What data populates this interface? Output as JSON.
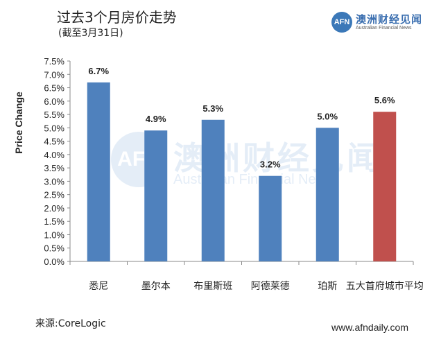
{
  "header": {
    "title": "过去3个月房价走势",
    "subtitle": "(截至3月31日)"
  },
  "logo": {
    "mark": "AFN",
    "name_cn": "澳洲财经见闻",
    "name_en": "Australian Financial News"
  },
  "footer": {
    "source": "来源:CoreLogic",
    "website": "www.afndaily.com"
  },
  "colors": {
    "bar_default": "#4f81bd",
    "bar_highlight": "#c0504d",
    "axis": "#888888",
    "text": "#222222"
  },
  "chart_data": {
    "type": "bar",
    "title": "过去3个月房价走势",
    "subtitle": "(截至3月31日)",
    "xlabel": "",
    "ylabel": "Price Change",
    "categories": [
      "悉尼",
      "墨尔本",
      "布里斯班",
      "阿德莱德",
      "珀斯",
      "五大首府城市平均"
    ],
    "values": [
      6.7,
      4.9,
      5.3,
      3.2,
      5.0,
      5.6
    ],
    "data_labels": [
      "6.7%",
      "4.9%",
      "5.3%",
      "3.2%",
      "5.0%",
      "5.6%"
    ],
    "highlight": [
      false,
      false,
      false,
      false,
      false,
      true
    ],
    "ylim": [
      0,
      7.5
    ],
    "yticks": [
      "0.0%",
      "0.5%",
      "1.0%",
      "1.5%",
      "2.0%",
      "2.5%",
      "3.0%",
      "3.5%",
      "4.0%",
      "4.5%",
      "5.0%",
      "5.5%",
      "6.0%",
      "6.5%",
      "7.0%",
      "7.5%"
    ],
    "grid": false,
    "legend": "none"
  }
}
